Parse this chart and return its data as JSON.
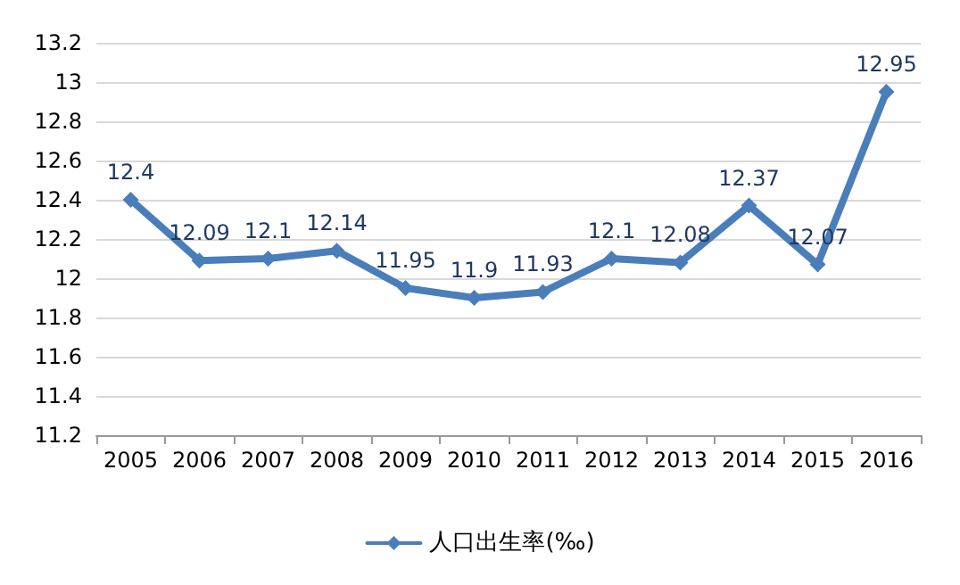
{
  "chart_data": {
    "type": "line",
    "categories": [
      "2005",
      "2006",
      "2007",
      "2008",
      "2009",
      "2010",
      "2011",
      "2012",
      "2013",
      "2014",
      "2015",
      "2016"
    ],
    "series": [
      {
        "name": "人口出生率(‰)",
        "color": "#4a7ebb",
        "values": [
          12.4,
          12.09,
          12.1,
          12.14,
          11.95,
          11.9,
          11.93,
          12.1,
          12.08,
          12.37,
          12.07,
          12.95
        ]
      }
    ],
    "ylim": [
      11.2,
      13.2
    ],
    "yticks": [
      11.2,
      11.4,
      11.6,
      11.8,
      12,
      12.2,
      12.4,
      12.6,
      12.8,
      13,
      13.2
    ],
    "grid": "y",
    "legend": "bottom",
    "marker": "diamond",
    "line_style": "solid",
    "data_labels": true
  }
}
